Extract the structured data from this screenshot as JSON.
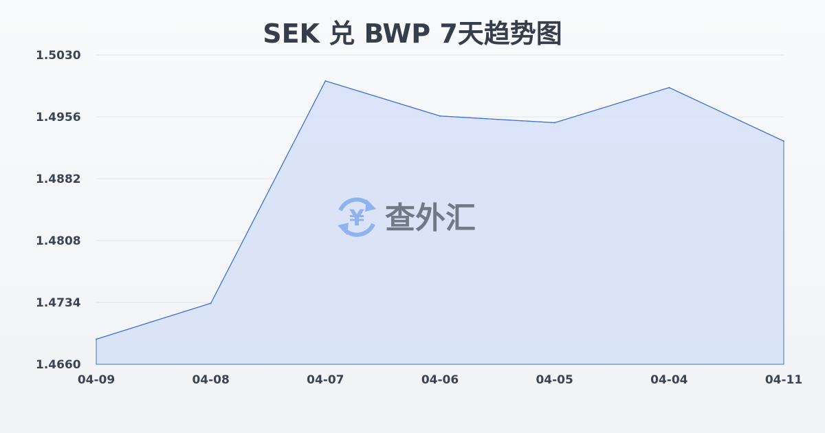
{
  "chart_data": {
    "type": "area",
    "title": "SEK 兑 BWP 7天趋势图",
    "xlabel": "",
    "ylabel": "",
    "categories": [
      "04-09",
      "04-08",
      "04-07",
      "04-06",
      "04-05",
      "04-04",
      "04-11"
    ],
    "values": [
      1.469,
      1.4733,
      1.4999,
      1.4957,
      1.4949,
      1.4991,
      1.4927
    ],
    "ylim": [
      1.466,
      1.503
    ],
    "yticks": [
      "1.4660",
      "1.4734",
      "1.4808",
      "1.4882",
      "1.4956",
      "1.5030"
    ],
    "grid": true,
    "colors": {
      "line": "#3a6fd8",
      "fill": "#d6e1f7",
      "title": "#363e4c"
    }
  },
  "watermark": {
    "text": "查外汇",
    "icon": "yen-exchange-icon",
    "icon_color": "#8fb3ee"
  }
}
